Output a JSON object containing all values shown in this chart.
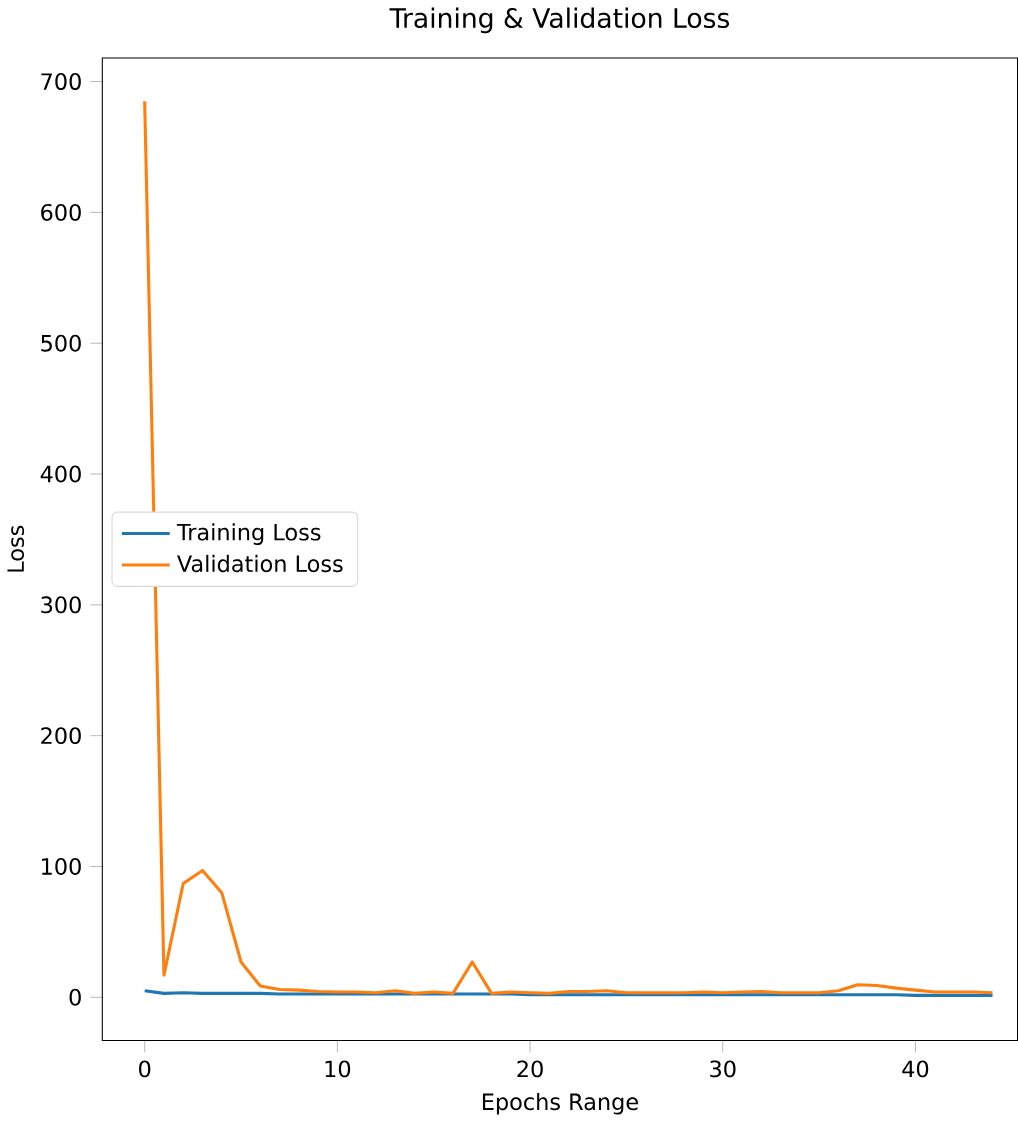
{
  "chart_data": {
    "type": "line",
    "title": "Training & Validation Loss",
    "xlabel": "Epochs Range",
    "ylabel": "Loss",
    "x": [
      0,
      1,
      2,
      3,
      4,
      5,
      6,
      7,
      8,
      9,
      10,
      11,
      12,
      13,
      14,
      15,
      16,
      17,
      18,
      19,
      20,
      21,
      22,
      23,
      24,
      25,
      26,
      27,
      28,
      29,
      30,
      31,
      32,
      33,
      34,
      35,
      36,
      37,
      38,
      39,
      40,
      41,
      42,
      43,
      44
    ],
    "series": [
      {
        "name": "Training Loss",
        "color": "#1f77b4",
        "values": [
          5,
          3,
          3.5,
          3,
          3,
          3,
          3,
          2.5,
          2.5,
          2.5,
          2.5,
          2.5,
          2.5,
          2.5,
          2.5,
          2.5,
          2.5,
          2.5,
          2.5,
          2.5,
          2,
          2,
          2,
          2,
          2,
          2,
          2,
          2,
          2,
          2,
          2,
          2,
          2,
          2,
          2,
          2,
          2,
          2,
          2,
          2,
          1.5,
          1.5,
          1.5,
          1.5,
          1.5
        ]
      },
      {
        "name": "Validation Loss",
        "color": "#ff7f0e",
        "values": [
          685,
          17,
          87,
          97,
          80,
          27,
          8.6,
          6,
          5.5,
          4.5,
          4,
          4,
          3.5,
          5,
          3,
          4,
          3,
          27,
          3,
          4,
          3.5,
          3,
          4.5,
          4.5,
          5,
          3.5,
          3.5,
          3.5,
          3.5,
          4,
          3.5,
          4,
          4.5,
          3.5,
          3.5,
          3.5,
          5,
          9.6,
          9,
          7,
          5.5,
          4,
          4,
          4,
          3.5
        ]
      }
    ],
    "xlim": [
      -2.2,
      45.3
    ],
    "ylim": [
      -33,
      718
    ],
    "xticks": [
      0,
      10,
      20,
      30,
      40
    ],
    "yticks": [
      0,
      100,
      200,
      300,
      400,
      500,
      600,
      700
    ],
    "grid": false,
    "legend": "left",
    "marker": "none",
    "line_style": "solid"
  }
}
